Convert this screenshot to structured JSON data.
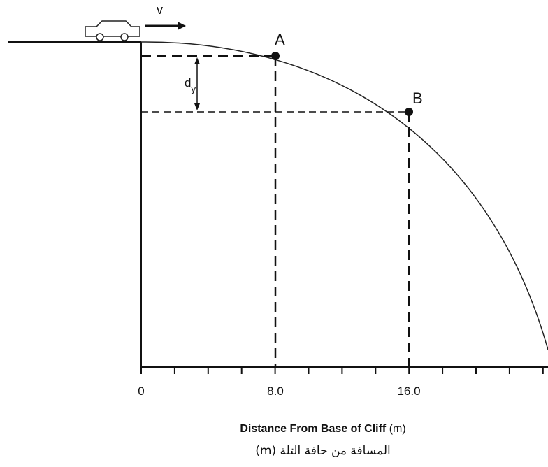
{
  "diagram": {
    "velocity_label": "v",
    "point_a": "A",
    "point_b": "B",
    "displacement_label": "d",
    "displacement_subscript": "y",
    "tick_labels": [
      "0",
      "8.0",
      "16.0"
    ],
    "axis_title": "Distance From Base of Cliff",
    "axis_unit": "(m)",
    "axis_title_arabic": "المسافة من حافة التلة (m)"
  }
}
